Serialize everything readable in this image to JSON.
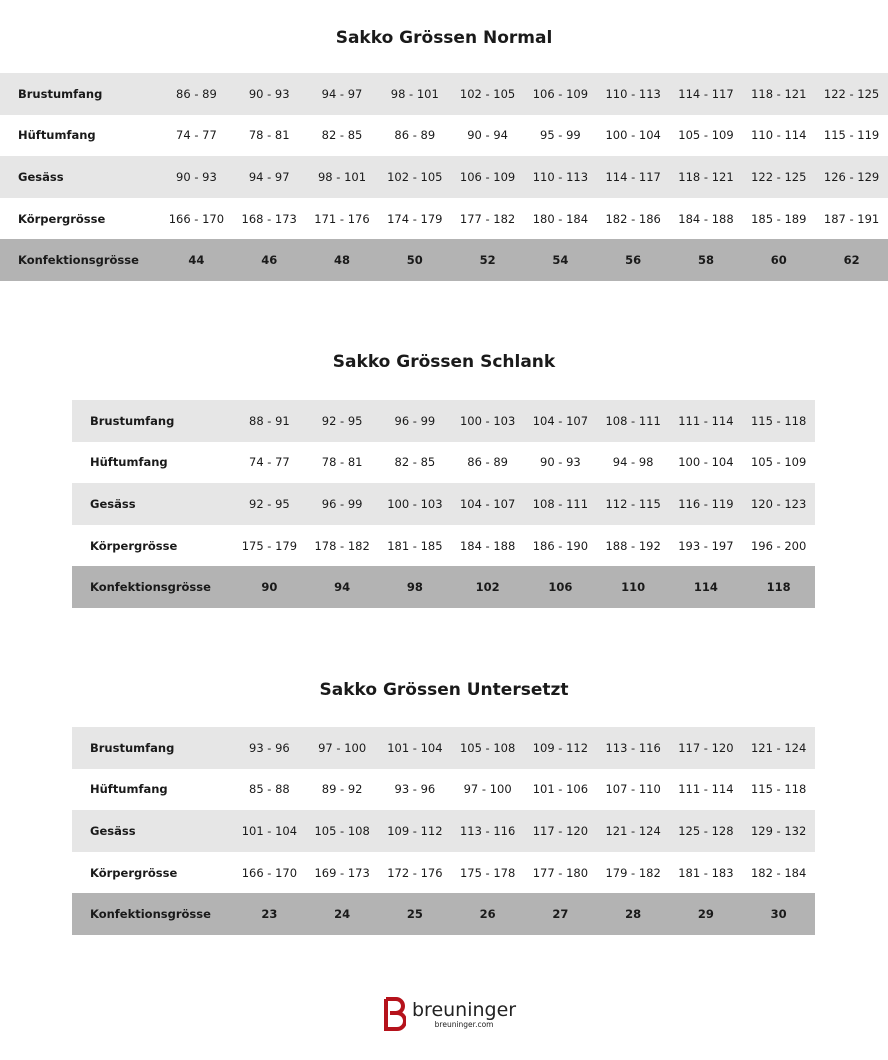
{
  "tables": [
    {
      "title": "Sakko Grössen Normal",
      "rows": [
        {
          "label": "Brustumfang",
          "values": [
            "86 - 89",
            "90 - 93",
            "94 - 97",
            "98 - 101",
            "102 - 105",
            "106 - 109",
            "110 - 113",
            "114 - 117",
            "118 - 121",
            "122 - 125"
          ]
        },
        {
          "label": "Hüftumfang",
          "values": [
            "74 - 77",
            "78 - 81",
            "82 - 85",
            "86 - 89",
            "90 - 94",
            "95 - 99",
            "100 - 104",
            "105 - 109",
            "110 - 114",
            "115 - 119"
          ]
        },
        {
          "label": "Gesäss",
          "values": [
            "90 - 93",
            "94 - 97",
            "98 - 101",
            "102 - 105",
            "106 - 109",
            "110 - 113",
            "114 - 117",
            "118 - 121",
            "122 - 125",
            "126 - 129"
          ]
        },
        {
          "label": "Körpergrösse",
          "values": [
            "166 - 170",
            "168 - 173",
            "171 - 176",
            "174 - 179",
            "177 - 182",
            "180 - 184",
            "182 - 186",
            "184 - 188",
            "185 - 189",
            "187 - 191"
          ]
        },
        {
          "label": "Konfektionsgrösse",
          "values": [
            "44",
            "46",
            "48",
            "50",
            "52",
            "54",
            "56",
            "58",
            "60",
            "62"
          ]
        }
      ]
    },
    {
      "title": "Sakko Grössen Schlank",
      "rows": [
        {
          "label": "Brustumfang",
          "values": [
            "88 - 91",
            "92 - 95",
            "96 - 99",
            "100 - 103",
            "104 - 107",
            "108 - 111",
            "111 - 114",
            "115 - 118"
          ]
        },
        {
          "label": "Hüftumfang",
          "values": [
            "74 - 77",
            "78 - 81",
            "82 - 85",
            "86 - 89",
            "90 - 93",
            "94 - 98",
            "100 - 104",
            "105 - 109"
          ]
        },
        {
          "label": "Gesäss",
          "values": [
            "92 - 95",
            "96 - 99",
            "100 - 103",
            "104 - 107",
            "108 - 111",
            "112 - 115",
            "116 - 119",
            "120 - 123"
          ]
        },
        {
          "label": "Körpergrösse",
          "values": [
            "175 - 179",
            "178 - 182",
            "181 - 185",
            "184 - 188",
            "186 - 190",
            "188 - 192",
            "193 - 197",
            "196 - 200"
          ]
        },
        {
          "label": "Konfektionsgrösse",
          "values": [
            "90",
            "94",
            "98",
            "102",
            "106",
            "110",
            "114",
            "118"
          ]
        }
      ]
    },
    {
      "title": "Sakko Grössen Untersetzt",
      "rows": [
        {
          "label": "Brustumfang",
          "values": [
            "93 - 96",
            "97 - 100",
            "101 - 104",
            "105 - 108",
            "109 - 112",
            "113 - 116",
            "117 - 120",
            "121 - 124"
          ]
        },
        {
          "label": "Hüftumfang",
          "values": [
            "85 - 88",
            "89 - 92",
            "93 - 96",
            "97 - 100",
            "101 - 106",
            "107 - 110",
            "111 - 114",
            "115 - 118"
          ]
        },
        {
          "label": "Gesäss",
          "values": [
            "101 - 104",
            "105 - 108",
            "109 - 112",
            "113 - 116",
            "117 - 120",
            "121 - 124",
            "125 - 128",
            "129 - 132"
          ]
        },
        {
          "label": "Körpergrösse",
          "values": [
            "166 - 170",
            "169 - 173",
            "172 - 176",
            "175 - 178",
            "177 - 180",
            "179 - 182",
            "181 - 183",
            "182 - 184"
          ]
        },
        {
          "label": "Konfektionsgrösse",
          "values": [
            "23",
            "24",
            "25",
            "26",
            "27",
            "28",
            "29",
            "30"
          ]
        }
      ]
    }
  ],
  "logo": {
    "brand": "breuninger",
    "url": "breuninger.com",
    "color": "#b5121b"
  },
  "colors": {
    "row_gray": "#e6e6e6",
    "row_total": "#b3b3b3"
  }
}
